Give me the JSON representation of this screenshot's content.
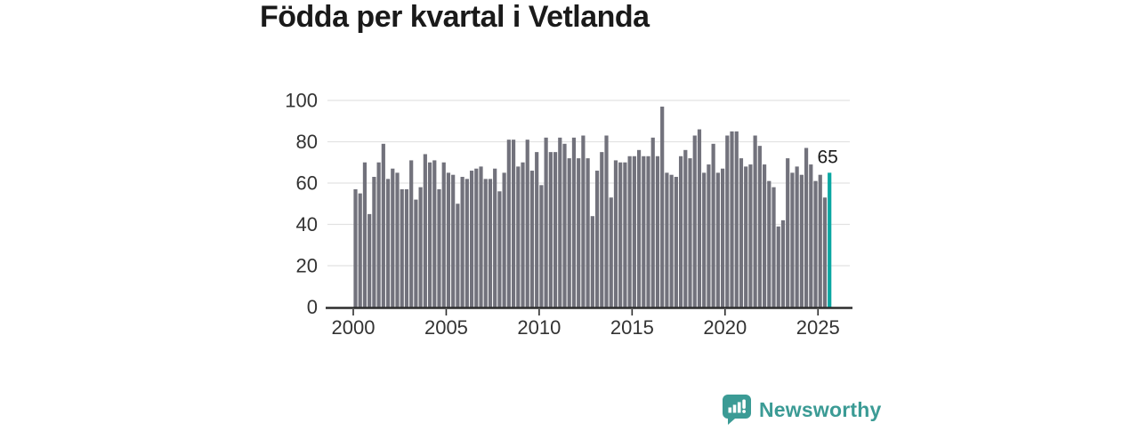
{
  "title": "Födda per kvartal i Vetlanda",
  "annotation": {
    "label": "65"
  },
  "logo": {
    "text": "Newsworthy",
    "color": "#3b9b95"
  },
  "colors": {
    "bar": "#72727c",
    "highlight": "#0aa7a2",
    "grid": "#e2e2e2",
    "axis": "#2d2d2d",
    "tick_text": "#333333",
    "title_text": "#1a1a1a",
    "annotation_text": "#1a1a1a"
  },
  "chart_data": {
    "type": "bar",
    "title": "Födda per kvartal i Vetlanda",
    "xlabel": "",
    "ylabel": "",
    "ylim": [
      0,
      100
    ],
    "y_ticks": [
      0,
      20,
      40,
      60,
      80,
      100
    ],
    "x_tick_labels": [
      "2000",
      "2005",
      "2010",
      "2015",
      "2020",
      "2025"
    ],
    "grid": true,
    "legend_position": "none",
    "bar_color": "#72727c",
    "highlight": {
      "index": 102,
      "color": "#0aa7a2",
      "label": "65"
    },
    "quarters": [
      "2000Q1",
      "2000Q2",
      "2000Q3",
      "2000Q4",
      "2001Q1",
      "2001Q2",
      "2001Q3",
      "2001Q4",
      "2002Q1",
      "2002Q2",
      "2002Q3",
      "2002Q4",
      "2003Q1",
      "2003Q2",
      "2003Q3",
      "2003Q4",
      "2004Q1",
      "2004Q2",
      "2004Q3",
      "2004Q4",
      "2005Q1",
      "2005Q2",
      "2005Q3",
      "2005Q4",
      "2006Q1",
      "2006Q2",
      "2006Q3",
      "2006Q4",
      "2007Q1",
      "2007Q2",
      "2007Q3",
      "2007Q4",
      "2008Q1",
      "2008Q2",
      "2008Q3",
      "2008Q4",
      "2009Q1",
      "2009Q2",
      "2009Q3",
      "2009Q4",
      "2010Q1",
      "2010Q2",
      "2010Q3",
      "2010Q4",
      "2011Q1",
      "2011Q2",
      "2011Q3",
      "2011Q4",
      "2012Q1",
      "2012Q2",
      "2012Q3",
      "2012Q4",
      "2013Q1",
      "2013Q2",
      "2013Q3",
      "2013Q4",
      "2014Q1",
      "2014Q2",
      "2014Q3",
      "2014Q4",
      "2015Q1",
      "2015Q2",
      "2015Q3",
      "2015Q4",
      "2016Q1",
      "2016Q2",
      "2016Q3",
      "2016Q4",
      "2017Q1",
      "2017Q2",
      "2017Q3",
      "2017Q4",
      "2018Q1",
      "2018Q2",
      "2018Q3",
      "2018Q4",
      "2019Q1",
      "2019Q2",
      "2019Q3",
      "2019Q4",
      "2020Q1",
      "2020Q2",
      "2020Q3",
      "2020Q4",
      "2021Q1",
      "2021Q2",
      "2021Q3",
      "2021Q4",
      "2022Q1",
      "2022Q2",
      "2022Q3",
      "2022Q4",
      "2023Q1",
      "2023Q2",
      "2023Q3",
      "2023Q4",
      "2024Q1",
      "2024Q2",
      "2024Q3",
      "2024Q4",
      "2025Q1",
      "2025Q2",
      "2025Q3"
    ],
    "values": [
      57,
      55,
      70,
      45,
      63,
      70,
      79,
      62,
      67,
      65,
      57,
      57,
      71,
      52,
      58,
      74,
      70,
      71,
      57,
      70,
      65,
      64,
      50,
      63,
      62,
      66,
      67,
      68,
      62,
      62,
      67,
      56,
      65,
      81,
      81,
      68,
      70,
      81,
      66,
      75,
      59,
      82,
      75,
      75,
      82,
      79,
      72,
      82,
      72,
      83,
      72,
      44,
      66,
      75,
      83,
      53,
      71,
      70,
      70,
      73,
      73,
      76,
      73,
      73,
      82,
      73,
      97,
      65,
      64,
      63,
      73,
      76,
      72,
      83,
      86,
      65,
      69,
      79,
      65,
      67,
      83,
      85,
      85,
      72,
      68,
      69,
      83,
      78,
      69,
      61,
      58,
      39,
      42,
      72,
      65,
      68,
      64,
      77,
      69,
      61,
      64,
      53,
      65
    ]
  }
}
